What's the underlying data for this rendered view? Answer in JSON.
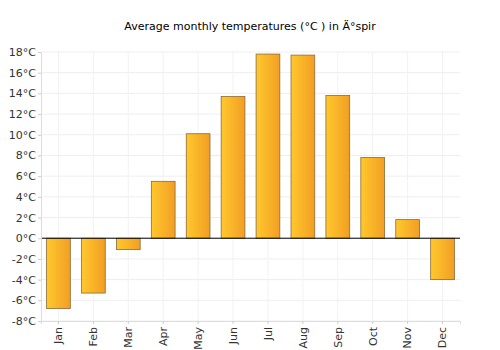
{
  "chart_data": {
    "type": "bar",
    "title": "Average monthly temperatures (°C ) in Ä°spir",
    "categories": [
      "Jan",
      "Feb",
      "Mar",
      "Apr",
      "May",
      "Jun",
      "Jul",
      "Aug",
      "Sep",
      "Oct",
      "Nov",
      "Dec"
    ],
    "values": [
      -6.8,
      -5.3,
      -1.1,
      5.5,
      10.1,
      13.7,
      17.8,
      17.7,
      13.8,
      7.8,
      1.8,
      -4.0
    ],
    "color": "#ffa726",
    "ylim": [
      -8,
      18
    ],
    "yticks": [
      {
        "value": -8,
        "label": "-8°C"
      },
      {
        "value": -6,
        "label": "-6°C"
      },
      {
        "value": -4,
        "label": "-4°C"
      },
      {
        "value": -2,
        "label": "-2°C"
      },
      {
        "value": 0,
        "label": "0°C"
      },
      {
        "value": 2,
        "label": "2°C"
      },
      {
        "value": 4,
        "label": "4°C"
      },
      {
        "value": 6,
        "label": "6°C"
      },
      {
        "value": 8,
        "label": "8°C"
      },
      {
        "value": 10,
        "label": "10°C"
      },
      {
        "value": 12,
        "label": "12°C"
      },
      {
        "value": 14,
        "label": "14°C"
      },
      {
        "value": 16,
        "label": "16°C"
      },
      {
        "value": 18,
        "label": "18°C"
      }
    ],
    "grid": true
  }
}
